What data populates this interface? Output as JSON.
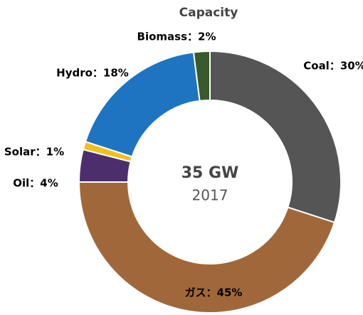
{
  "chart_data": {
    "type": "pie",
    "title": "Capacity",
    "values": [
      30,
      45,
      4,
      1,
      18,
      2
    ],
    "value_labels": [
      "Coal：30%",
      "ガス：45%",
      "Oil：4%",
      "Solar：1%",
      "Hydro：18%",
      "Biomass：2%"
    ],
    "colors": [
      "#555555",
      "#a0683a",
      "#4b2e6b",
      "#f2c01e",
      "#1f74c1",
      "#3b5a2c"
    ],
    "center_value": "35 GW",
    "center_year": "2017"
  }
}
